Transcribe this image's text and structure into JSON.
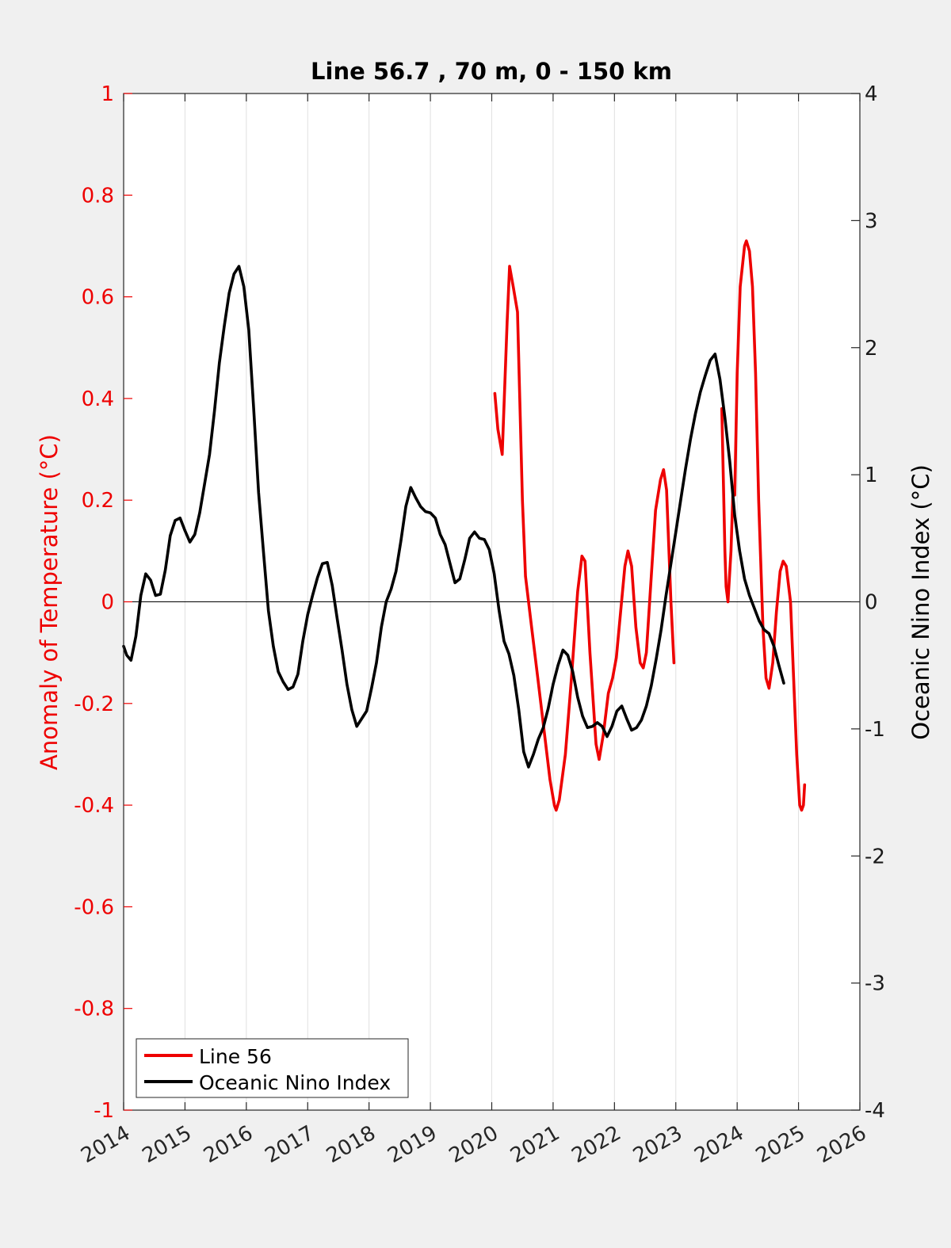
{
  "chart_data": {
    "type": "line",
    "title": "Line 56.7 , 70 m, 0 - 150 km",
    "ylabel": "Anomaly of Temperature (°C)",
    "y2label": "Oceanic Nino Index (°C)",
    "xlim": [
      2014,
      2026
    ],
    "ylim": [
      -1,
      1
    ],
    "y2lim": [
      -4,
      4
    ],
    "x_ticks": [
      2014,
      2015,
      2016,
      2017,
      2018,
      2019,
      2020,
      2021,
      2022,
      2023,
      2024,
      2025,
      2026
    ],
    "y_ticks": [
      "-1",
      "-0.8",
      "-0.6",
      "-0.4",
      "-0.2",
      "0",
      "0.2",
      "0.4",
      "0.6",
      "0.8",
      "1"
    ],
    "y2_ticks": [
      "-4",
      "-3",
      "-2",
      "-1",
      "0",
      "1",
      "2",
      "3",
      "4"
    ],
    "grid": "vertical",
    "legend_position": "bottom-left",
    "colors": {
      "line56": "#ee0000",
      "oni": "#000000",
      "axis_left": "#ee0000",
      "axis_right": "#1a1a1a"
    },
    "series": [
      {
        "name": "Line 56",
        "axis": "left",
        "segments": [
          [
            [
              2020.05,
              0.41
            ],
            [
              2020.1,
              0.34
            ],
            [
              2020.17,
              0.29
            ],
            [
              2020.25,
              0.55
            ],
            [
              2020.29,
              0.66
            ],
            [
              2020.35,
              0.62
            ],
            [
              2020.42,
              0.57
            ],
            [
              2020.5,
              0.2
            ],
            [
              2020.55,
              0.05
            ],
            [
              2020.65,
              -0.05
            ],
            [
              2020.75,
              -0.15
            ],
            [
              2020.85,
              -0.25
            ],
            [
              2020.95,
              -0.35
            ],
            [
              2021.02,
              -0.4
            ],
            [
              2021.05,
              -0.41
            ],
            [
              2021.1,
              -0.39
            ],
            [
              2021.2,
              -0.3
            ],
            [
              2021.3,
              -0.15
            ],
            [
              2021.4,
              0.02
            ],
            [
              2021.47,
              0.09
            ],
            [
              2021.52,
              0.08
            ],
            [
              2021.6,
              -0.1
            ],
            [
              2021.7,
              -0.28
            ],
            [
              2021.75,
              -0.31
            ],
            [
              2021.82,
              -0.26
            ],
            [
              2021.9,
              -0.18
            ],
            [
              2021.97,
              -0.15
            ],
            [
              2022.03,
              -0.11
            ],
            [
              2022.1,
              -0.02
            ],
            [
              2022.17,
              0.07
            ],
            [
              2022.22,
              0.1
            ],
            [
              2022.28,
              0.07
            ],
            [
              2022.35,
              -0.05
            ],
            [
              2022.42,
              -0.12
            ],
            [
              2022.47,
              -0.13
            ],
            [
              2022.52,
              -0.1
            ],
            [
              2022.6,
              0.05
            ],
            [
              2022.67,
              0.18
            ],
            [
              2022.75,
              0.24
            ],
            [
              2022.8,
              0.26
            ],
            [
              2022.85,
              0.22
            ],
            [
              2022.92,
              0.0
            ],
            [
              2022.97,
              -0.12
            ]
          ],
          [
            [
              2023.75,
              0.38
            ],
            [
              2023.8,
              0.1
            ],
            [
              2023.82,
              0.03
            ],
            [
              2023.85,
              0.0
            ],
            [
              2023.9,
              0.1
            ],
            [
              2023.93,
              0.21
            ],
            [
              2023.96,
              0.21
            ],
            [
              2024.0,
              0.45
            ],
            [
              2024.05,
              0.62
            ],
            [
              2024.12,
              0.7
            ],
            [
              2024.15,
              0.71
            ],
            [
              2024.2,
              0.69
            ],
            [
              2024.25,
              0.62
            ],
            [
              2024.3,
              0.45
            ],
            [
              2024.35,
              0.2
            ],
            [
              2024.42,
              -0.05
            ],
            [
              2024.47,
              -0.15
            ],
            [
              2024.52,
              -0.17
            ],
            [
              2024.58,
              -0.12
            ],
            [
              2024.64,
              -0.02
            ],
            [
              2024.7,
              0.06
            ],
            [
              2024.75,
              0.08
            ],
            [
              2024.8,
              0.07
            ],
            [
              2024.87,
              0.0
            ],
            [
              2024.92,
              -0.15
            ],
            [
              2024.97,
              -0.3
            ],
            [
              2025.02,
              -0.4
            ],
            [
              2025.05,
              -0.41
            ],
            [
              2025.08,
              -0.4
            ],
            [
              2025.1,
              -0.36
            ]
          ]
        ]
      },
      {
        "name": "Oceanic Nino Index",
        "axis": "right",
        "segments": [
          [
            [
              2014.0,
              -0.35
            ],
            [
              2014.05,
              -0.42
            ],
            [
              2014.12,
              -0.46
            ],
            [
              2014.2,
              -0.27
            ],
            [
              2014.28,
              0.05
            ],
            [
              2014.36,
              0.22
            ],
            [
              2014.44,
              0.17
            ],
            [
              2014.52,
              0.05
            ],
            [
              2014.6,
              0.06
            ],
            [
              2014.68,
              0.25
            ],
            [
              2014.76,
              0.52
            ],
            [
              2014.84,
              0.64
            ],
            [
              2014.92,
              0.66
            ],
            [
              2015.0,
              0.56
            ],
            [
              2015.08,
              0.47
            ],
            [
              2015.16,
              0.53
            ],
            [
              2015.24,
              0.7
            ],
            [
              2015.32,
              0.93
            ],
            [
              2015.4,
              1.16
            ],
            [
              2015.48,
              1.5
            ],
            [
              2015.56,
              1.88
            ],
            [
              2015.64,
              2.17
            ],
            [
              2015.72,
              2.43
            ],
            [
              2015.8,
              2.58
            ],
            [
              2015.88,
              2.64
            ],
            [
              2015.96,
              2.48
            ],
            [
              2016.04,
              2.14
            ],
            [
              2016.12,
              1.52
            ],
            [
              2016.2,
              0.86
            ],
            [
              2016.28,
              0.39
            ],
            [
              2016.36,
              -0.07
            ],
            [
              2016.44,
              -0.35
            ],
            [
              2016.52,
              -0.55
            ],
            [
              2016.6,
              -0.63
            ],
            [
              2016.68,
              -0.69
            ],
            [
              2016.76,
              -0.67
            ],
            [
              2016.84,
              -0.57
            ],
            [
              2016.92,
              -0.31
            ],
            [
              2017.0,
              -0.1
            ],
            [
              2017.08,
              0.05
            ],
            [
              2017.16,
              0.19
            ],
            [
              2017.24,
              0.3
            ],
            [
              2017.32,
              0.31
            ],
            [
              2017.4,
              0.13
            ],
            [
              2017.48,
              -0.13
            ],
            [
              2017.56,
              -0.38
            ],
            [
              2017.64,
              -0.65
            ],
            [
              2017.72,
              -0.85
            ],
            [
              2017.8,
              -0.98
            ],
            [
              2017.88,
              -0.92
            ],
            [
              2017.96,
              -0.86
            ],
            [
              2018.04,
              -0.68
            ],
            [
              2018.12,
              -0.48
            ],
            [
              2018.2,
              -0.2
            ],
            [
              2018.28,
              0.0
            ],
            [
              2018.36,
              0.1
            ],
            [
              2018.44,
              0.24
            ],
            [
              2018.52,
              0.48
            ],
            [
              2018.6,
              0.75
            ],
            [
              2018.68,
              0.9
            ],
            [
              2018.76,
              0.82
            ],
            [
              2018.84,
              0.75
            ],
            [
              2018.92,
              0.71
            ],
            [
              2019.0,
              0.7
            ],
            [
              2019.08,
              0.66
            ],
            [
              2019.16,
              0.53
            ],
            [
              2019.24,
              0.45
            ],
            [
              2019.32,
              0.3
            ],
            [
              2019.4,
              0.15
            ],
            [
              2019.48,
              0.18
            ],
            [
              2019.56,
              0.33
            ],
            [
              2019.64,
              0.5
            ],
            [
              2019.72,
              0.55
            ],
            [
              2019.8,
              0.5
            ],
            [
              2019.88,
              0.49
            ],
            [
              2019.96,
              0.41
            ],
            [
              2020.04,
              0.22
            ],
            [
              2020.12,
              -0.07
            ],
            [
              2020.2,
              -0.31
            ],
            [
              2020.28,
              -0.41
            ],
            [
              2020.36,
              -0.58
            ],
            [
              2020.44,
              -0.85
            ],
            [
              2020.52,
              -1.18
            ],
            [
              2020.6,
              -1.3
            ],
            [
              2020.68,
              -1.2
            ],
            [
              2020.76,
              -1.08
            ],
            [
              2020.84,
              -0.99
            ],
            [
              2020.92,
              -0.84
            ],
            [
              2021.0,
              -0.65
            ],
            [
              2021.08,
              -0.5
            ],
            [
              2021.16,
              -0.38
            ],
            [
              2021.24,
              -0.42
            ],
            [
              2021.32,
              -0.55
            ],
            [
              2021.4,
              -0.75
            ],
            [
              2021.48,
              -0.9
            ],
            [
              2021.56,
              -0.99
            ],
            [
              2021.64,
              -0.98
            ],
            [
              2021.72,
              -0.95
            ],
            [
              2021.8,
              -0.98
            ],
            [
              2021.88,
              -1.06
            ],
            [
              2021.96,
              -0.98
            ],
            [
              2022.04,
              -0.86
            ],
            [
              2022.12,
              -0.82
            ],
            [
              2022.2,
              -0.92
            ],
            [
              2022.28,
              -1.01
            ],
            [
              2022.36,
              -0.99
            ],
            [
              2022.44,
              -0.93
            ],
            [
              2022.52,
              -0.82
            ],
            [
              2022.6,
              -0.66
            ],
            [
              2022.68,
              -0.45
            ],
            [
              2022.76,
              -0.22
            ],
            [
              2022.84,
              0.05
            ],
            [
              2022.92,
              0.3
            ],
            [
              2023.0,
              0.55
            ],
            [
              2023.08,
              0.8
            ],
            [
              2023.16,
              1.05
            ],
            [
              2023.24,
              1.28
            ],
            [
              2023.32,
              1.48
            ],
            [
              2023.4,
              1.65
            ],
            [
              2023.48,
              1.78
            ],
            [
              2023.56,
              1.9
            ],
            [
              2023.64,
              1.95
            ],
            [
              2023.72,
              1.75
            ],
            [
              2023.8,
              1.45
            ],
            [
              2023.88,
              1.1
            ],
            [
              2023.96,
              0.68
            ],
            [
              2024.04,
              0.4
            ],
            [
              2024.12,
              0.18
            ],
            [
              2024.2,
              0.05
            ],
            [
              2024.28,
              -0.05
            ],
            [
              2024.36,
              -0.15
            ],
            [
              2024.44,
              -0.22
            ],
            [
              2024.52,
              -0.25
            ],
            [
              2024.6,
              -0.35
            ],
            [
              2024.68,
              -0.5
            ],
            [
              2024.76,
              -0.64
            ]
          ]
        ]
      }
    ]
  }
}
